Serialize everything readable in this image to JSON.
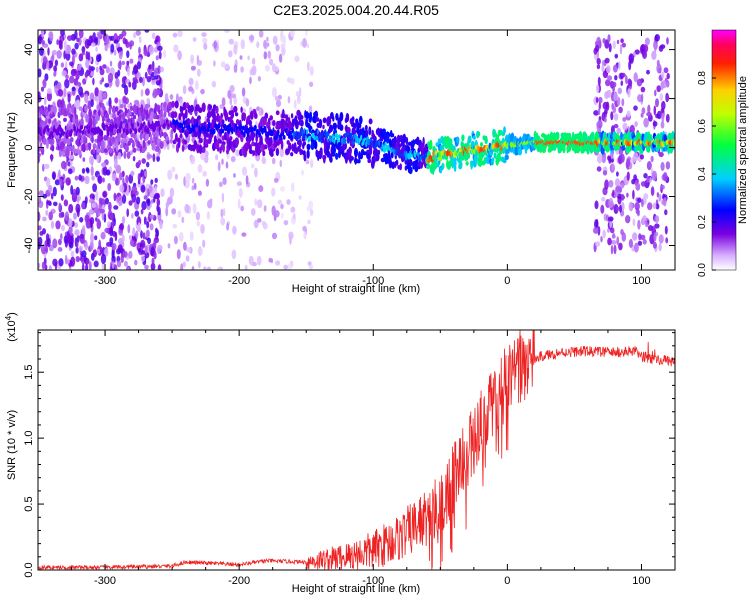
{
  "title": "C2E3.2025.004.20.44.R05",
  "colorbar": {
    "label": "Normalized spectral amplitude",
    "range": [
      0,
      1
    ],
    "ticks": [
      0.0,
      0.2,
      0.4,
      0.6,
      0.8
    ],
    "tick_labels": [
      "0.0",
      "0.2",
      "0.4",
      "0.6",
      "0.8"
    ]
  },
  "chart_data": [
    {
      "type": "heatmap",
      "name": "spectrogram",
      "xlabel": "Height of straight line (km)",
      "ylabel": "Frequency (Hz)",
      "xlim": [
        -350,
        125
      ],
      "ylim": [
        -50,
        48
      ],
      "xticks": [
        -300,
        -200,
        -100,
        0,
        100
      ],
      "xtick_labels": [
        "-300",
        "-200",
        "-100",
        "0",
        "100"
      ],
      "yticks": [
        -40,
        -20,
        0,
        20,
        40
      ],
      "ytick_labels": [
        "-40",
        "-20",
        "0",
        "20",
        "40"
      ],
      "ridge_frequency": {
        "x": [
          -350,
          -250,
          -200,
          -150,
          -110,
          -90,
          -75,
          -60,
          -45,
          -30,
          -10,
          0,
          20,
          65,
          125
        ],
        "y": [
          6,
          9,
          7,
          5,
          3,
          0,
          -3,
          -4,
          -3,
          -1,
          0,
          1,
          2,
          2,
          2
        ]
      },
      "broadband_noise_regions": [
        {
          "x": [
            -350,
            -258
          ],
          "level": "high"
        },
        {
          "x": [
            -258,
            -168
          ],
          "level": "low"
        },
        {
          "x": [
            -168,
            -145
          ],
          "level": "faint"
        },
        {
          "x": [
            65,
            120
          ],
          "level": "medium"
        }
      ]
    },
    {
      "type": "line",
      "name": "snr",
      "xlabel": "Height of straight line (km)",
      "ylabel": "SNR (10 * v/v)",
      "y_multiplier_label": "(x10",
      "y_multiplier_exponent": "4",
      "y_multiplier_close": ")",
      "xlim": [
        -350,
        125
      ],
      "ylim": [
        0,
        1.82
      ],
      "xticks": [
        -300,
        -200,
        -100,
        0,
        100
      ],
      "xtick_labels": [
        "-300",
        "-200",
        "-100",
        "0",
        "100"
      ],
      "yticks": [
        0.0,
        0.5,
        1.0,
        1.5
      ],
      "ytick_labels": [
        "0.0",
        "0.5",
        "1.0",
        "1.5"
      ],
      "color": "#ee2222",
      "x": [
        -350,
        -300,
        -250,
        -240,
        -200,
        -180,
        -150,
        -120,
        -100,
        -80,
        -60,
        -45,
        -30,
        -20,
        -10,
        0,
        10,
        25,
        40,
        60,
        80,
        95,
        100,
        110,
        125
      ],
      "y": [
        0.02,
        0.02,
        0.03,
        0.06,
        0.04,
        0.07,
        0.06,
        0.1,
        0.15,
        0.25,
        0.4,
        0.6,
        0.9,
        1.1,
        1.3,
        1.45,
        1.55,
        1.62,
        1.65,
        1.66,
        1.65,
        1.66,
        1.62,
        1.6,
        1.58
      ]
    }
  ]
}
